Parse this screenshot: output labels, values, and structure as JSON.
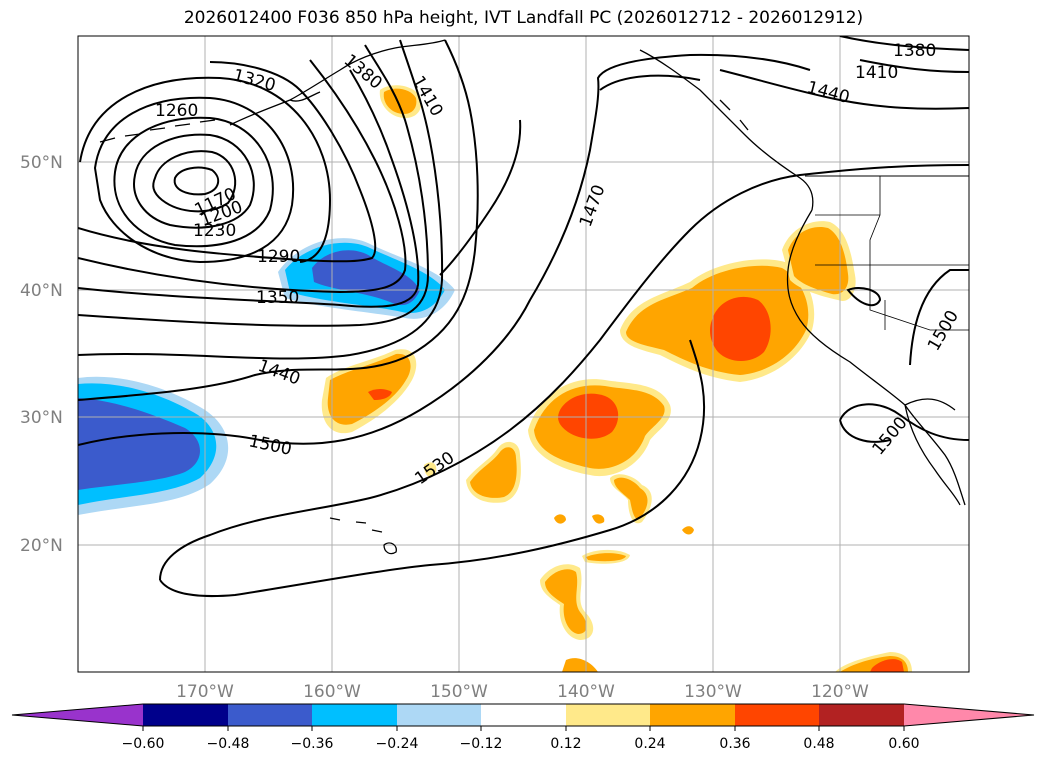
{
  "title": "2026012400 F036 850 hPa height, IVT Landfall PC (2026012712 - 2026012912)",
  "latitude_labels": [
    "50°N",
    "40°N",
    "30°N",
    "20°N"
  ],
  "longitude_labels": [
    "170°W",
    "160°W",
    "150°W",
    "140°W",
    "130°W",
    "120°W"
  ],
  "contour_labels": [
    "1320",
    "1380",
    "1410",
    "1380",
    "1410",
    "1440",
    "1260",
    "1170",
    "1200",
    "1230",
    "1290",
    "1350",
    "1440",
    "1470",
    "1500",
    "1530",
    "1500",
    "1500"
  ],
  "colorbar": {
    "tick_labels": [
      "−0.60",
      "−0.48",
      "−0.36",
      "−0.24",
      "−0.12",
      "0.12",
      "0.24",
      "0.36",
      "0.48",
      "0.60"
    ],
    "colors": [
      "#9933cc",
      "#00008b",
      "#3b5bcc",
      "#00bfff",
      "#add8f5",
      "#ffffff",
      "#ffe98a",
      "#ffa500",
      "#ff4500",
      "#b22222",
      "#ff88aa"
    ]
  }
}
